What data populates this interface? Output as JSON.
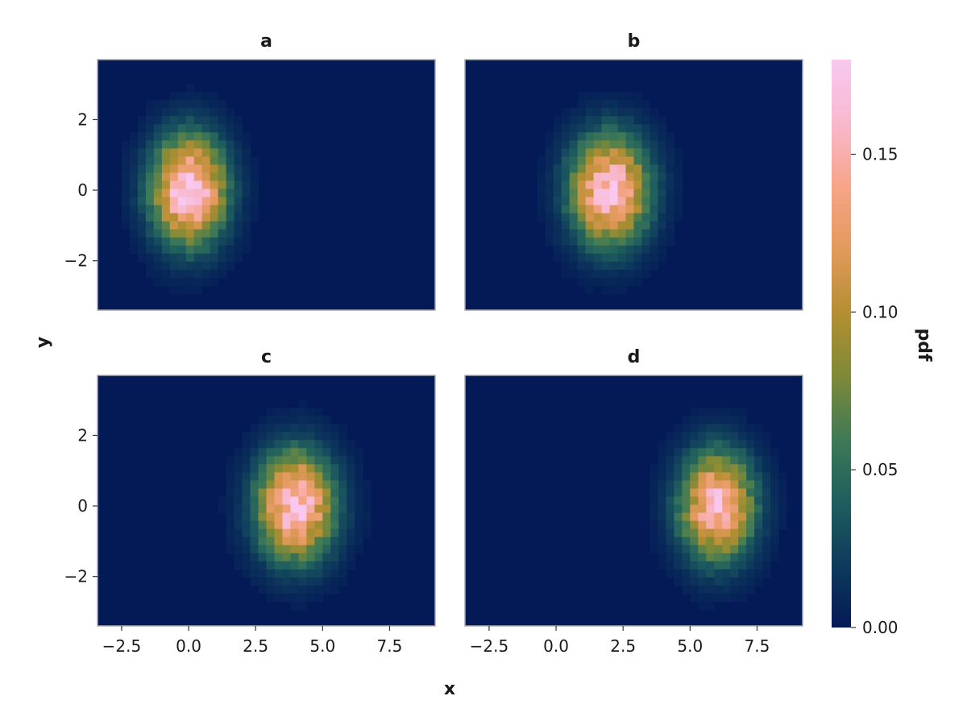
{
  "chart_data": {
    "type": "heatmap",
    "xlabel": "x",
    "ylabel": "y",
    "xlim": [
      -3.4,
      9.2
    ],
    "ylim": [
      -3.4,
      3.7
    ],
    "xticks": [
      -2.5,
      0.0,
      2.5,
      5.0,
      7.5
    ],
    "xtick_labels": [
      "−2.5",
      "0.0",
      "2.5",
      "5.0",
      "7.5"
    ],
    "yticks": [
      -2,
      0,
      2
    ],
    "ytick_labels": [
      "−2",
      "0",
      "2"
    ],
    "colorbar": {
      "label": "pdf",
      "range": [
        0.0,
        0.18
      ],
      "ticks": [
        0.0,
        0.05,
        0.1,
        0.15
      ],
      "tick_labels": [
        "0.00",
        "0.05",
        "0.10",
        "0.15"
      ],
      "colormap": [
        "#041a57",
        "#0e3a5c",
        "#1f5e5e",
        "#3f7a56",
        "#7f8a36",
        "#b58e32",
        "#e39a5c",
        "#f7a488",
        "#f8b9cf",
        "#f8c8f0"
      ]
    },
    "panels": [
      {
        "title": "a",
        "center": [
          0.0,
          0.0
        ],
        "peak": 0.18,
        "sigma": [
          0.95,
          1.05
        ]
      },
      {
        "title": "b",
        "center": [
          2.0,
          0.0
        ],
        "peak": 0.17,
        "sigma": [
          1.0,
          1.05
        ]
      },
      {
        "title": "c",
        "center": [
          4.0,
          0.0
        ],
        "peak": 0.17,
        "sigma": [
          1.0,
          1.05
        ]
      },
      {
        "title": "d",
        "center": [
          6.0,
          0.0
        ],
        "peak": 0.16,
        "sigma": [
          0.95,
          1.05
        ]
      }
    ]
  }
}
